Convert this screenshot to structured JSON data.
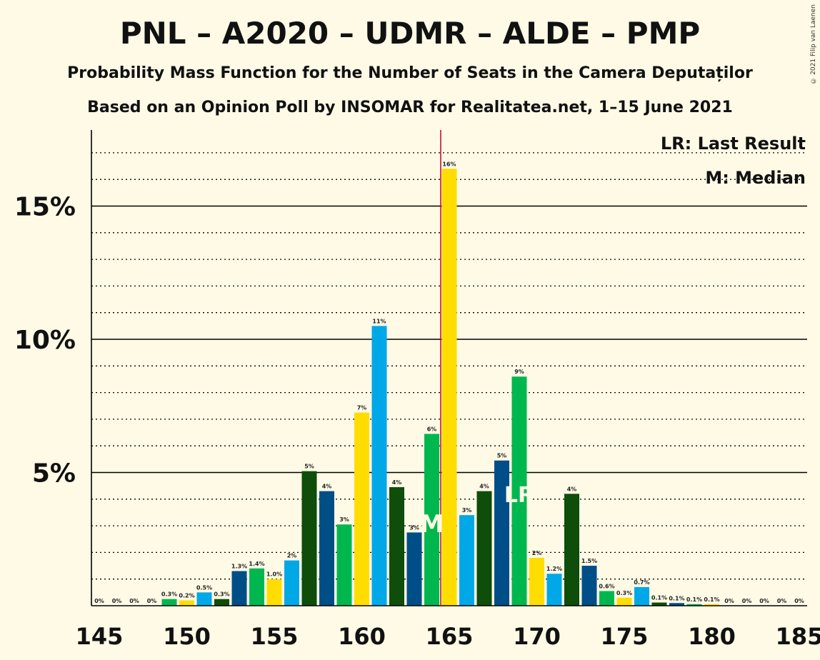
{
  "header": {
    "title": "PNL – A2020 – UDMR – ALDE – PMP",
    "subtitle1": "Probability Mass Function for the Number of Seats in the Camera Deputaților",
    "subtitle2": "Based on an Opinion Poll by INSOMAR for Realitatea.net, 1–15 June 2021",
    "copyright": "© 2021 Filip van Laenen"
  },
  "legend": {
    "lr": "LR: Last Result",
    "m": "M: Median"
  },
  "chart_data": {
    "type": "bar",
    "xlim": [
      145,
      185
    ],
    "ylim": [
      0,
      17.5
    ],
    "x_ticks": [
      145,
      150,
      155,
      160,
      165,
      170,
      175,
      180,
      185
    ],
    "y_ticks": [
      {
        "value": 5,
        "label": "5%"
      },
      {
        "value": 10,
        "label": "10%"
      },
      {
        "value": 15,
        "label": "15%"
      }
    ],
    "grid": true,
    "legend_position": "top-right",
    "median": 164,
    "median_label": "M",
    "last_result": 169,
    "last_result_label": "LR",
    "majority_line": 165,
    "colors": {
      "green": "#00B74F",
      "yellow": "#FFDD00",
      "blue": "#00A8E8",
      "darkgreen": "#0E4D0A",
      "navy": "#004E87",
      "majority": "#C8102E"
    },
    "bars": [
      {
        "x": 145,
        "value": 0,
        "label": "0%",
        "color": "green"
      },
      {
        "x": 146,
        "value": 0,
        "label": "0%",
        "color": "yellow"
      },
      {
        "x": 147,
        "value": 0,
        "label": "0%",
        "color": "blue"
      },
      {
        "x": 148,
        "value": 0,
        "label": "0%",
        "color": "darkgreen"
      },
      {
        "x": 149,
        "value": 0.25,
        "label": "0.3%",
        "color": "green"
      },
      {
        "x": 150,
        "value": 0.2,
        "label": "0.2%",
        "color": "yellow"
      },
      {
        "x": 151,
        "value": 0.5,
        "label": "0.5%",
        "color": "blue"
      },
      {
        "x": 152,
        "value": 0.25,
        "label": "0.3%",
        "color": "darkgreen"
      },
      {
        "x": 153,
        "value": 1.3,
        "label": "1.3%",
        "color": "navy"
      },
      {
        "x": 154,
        "value": 1.4,
        "label": "1.4%",
        "color": "green"
      },
      {
        "x": 155,
        "value": 1.0,
        "label": "1.0%",
        "color": "yellow"
      },
      {
        "x": 156,
        "value": 1.7,
        "label": "2%",
        "color": "blue"
      },
      {
        "x": 157,
        "value": 5.05,
        "label": "5%",
        "color": "darkgreen"
      },
      {
        "x": 158,
        "value": 4.3,
        "label": "4%",
        "color": "navy"
      },
      {
        "x": 159,
        "value": 3.05,
        "label": "3%",
        "color": "green"
      },
      {
        "x": 160,
        "value": 7.25,
        "label": "7%",
        "color": "yellow"
      },
      {
        "x": 161,
        "value": 10.5,
        "label": "11%",
        "color": "blue"
      },
      {
        "x": 162,
        "value": 4.45,
        "label": "4%",
        "color": "darkgreen"
      },
      {
        "x": 163,
        "value": 2.75,
        "label": "3%",
        "color": "navy"
      },
      {
        "x": 164,
        "value": 6.45,
        "label": "6%",
        "color": "green"
      },
      {
        "x": 165,
        "value": 16.4,
        "label": "16%",
        "color": "yellow"
      },
      {
        "x": 166,
        "value": 3.4,
        "label": "3%",
        "color": "blue"
      },
      {
        "x": 167,
        "value": 4.3,
        "label": "4%",
        "color": "darkgreen"
      },
      {
        "x": 168,
        "value": 5.45,
        "label": "5%",
        "color": "navy"
      },
      {
        "x": 169,
        "value": 8.6,
        "label": "9%",
        "color": "green"
      },
      {
        "x": 170,
        "value": 1.8,
        "label": "2%",
        "color": "yellow"
      },
      {
        "x": 171,
        "value": 1.2,
        "label": "1.2%",
        "color": "blue"
      },
      {
        "x": 172,
        "value": 4.2,
        "label": "4%",
        "color": "darkgreen"
      },
      {
        "x": 173,
        "value": 1.5,
        "label": "1.5%",
        "color": "navy"
      },
      {
        "x": 174,
        "value": 0.55,
        "label": "0.6%",
        "color": "green"
      },
      {
        "x": 175,
        "value": 0.3,
        "label": "0.3%",
        "color": "yellow"
      },
      {
        "x": 176,
        "value": 0.7,
        "label": "0.7%",
        "color": "blue"
      },
      {
        "x": 177,
        "value": 0.12,
        "label": "0.1%",
        "color": "darkgreen"
      },
      {
        "x": 178,
        "value": 0.1,
        "label": "0.1%",
        "color": "navy"
      },
      {
        "x": 179,
        "value": 0.06,
        "label": "0.1%",
        "color": "green"
      },
      {
        "x": 180,
        "value": 0.06,
        "label": "0.1%",
        "color": "yellow"
      },
      {
        "x": 181,
        "value": 0,
        "label": "0%",
        "color": "blue"
      },
      {
        "x": 182,
        "value": 0,
        "label": "0%",
        "color": "darkgreen"
      },
      {
        "x": 183,
        "value": 0,
        "label": "0%",
        "color": "navy"
      },
      {
        "x": 184,
        "value": 0,
        "label": "0%",
        "color": "green"
      },
      {
        "x": 185,
        "value": 0,
        "label": "0%",
        "color": "yellow"
      }
    ]
  }
}
